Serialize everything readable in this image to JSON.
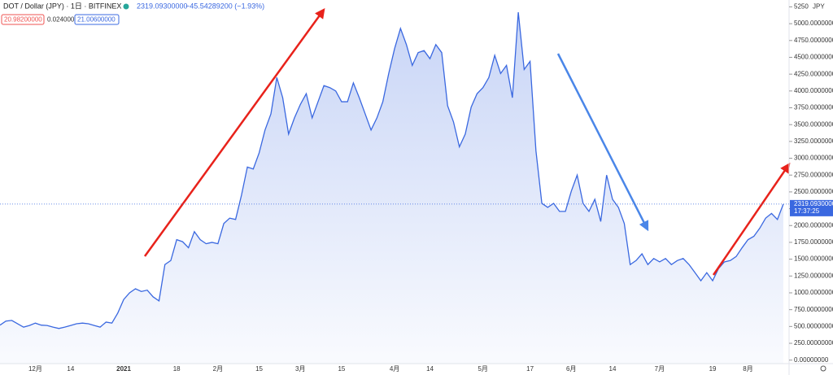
{
  "header": {
    "symbol": "DOT / Dollar (JPY) · 1日 · BITFINEX",
    "last": "2319.09300000",
    "change": "−45.54289200 (−1.93%)",
    "box_low": "20.98200000",
    "box_mid": "0.02400000",
    "box_high": "21.00600000"
  },
  "chart_data": {
    "type": "area",
    "currency": "JPY",
    "color": "#3a68e0",
    "categories": [
      null,
      null,
      null,
      null,
      null,
      null,
      "12月",
      null,
      null,
      null,
      null,
      null,
      "14",
      null,
      null,
      null,
      null,
      null,
      null,
      null,
      null,
      "2021",
      null,
      null,
      null,
      null,
      null,
      null,
      null,
      null,
      "18",
      null,
      null,
      null,
      null,
      null,
      null,
      "2月",
      null,
      null,
      null,
      null,
      null,
      null,
      "15",
      null,
      null,
      null,
      null,
      null,
      null,
      "3月",
      null,
      null,
      null,
      null,
      null,
      null,
      "15",
      null,
      null,
      null,
      null,
      null,
      null,
      null,
      null,
      "4月",
      null,
      null,
      null,
      null,
      null,
      "14",
      null,
      null,
      null,
      null,
      null,
      null,
      null,
      null,
      "5月",
      null,
      null,
      null,
      null,
      null,
      null,
      null,
      "17",
      null,
      null,
      null,
      null,
      null,
      null,
      "6月",
      null,
      null,
      null,
      null,
      null,
      null,
      "14",
      null,
      null,
      null,
      null,
      null,
      null,
      null,
      "7月",
      null,
      null,
      null,
      null,
      null,
      null,
      null,
      null,
      "19",
      null,
      null,
      null,
      null,
      null,
      "8月",
      null,
      null,
      null,
      null,
      null,
      null
    ],
    "series": [
      {
        "name": "DOT / Dollar (JPY)",
        "color": "#3a68e0",
        "values": [
          520,
          580,
          590,
          540,
          490,
          515,
          550,
          520,
          515,
          490,
          470,
          490,
          515,
          540,
          550,
          540,
          515,
          490,
          565,
          550,
          700,
          900,
          1000,
          1060,
          1020,
          1040,
          940,
          880,
          1420,
          1480,
          1790,
          1760,
          1670,
          1910,
          1790,
          1730,
          1750,
          1730,
          2030,
          2110,
          2090,
          2450,
          2870,
          2840,
          3080,
          3420,
          3660,
          4200,
          3900,
          3360,
          3600,
          3800,
          3960,
          3600,
          3840,
          4080,
          4050,
          4000,
          3840,
          3840,
          4120,
          3900,
          3660,
          3420,
          3600,
          3840,
          4260,
          4630,
          4930,
          4690,
          4380,
          4570,
          4600,
          4480,
          4690,
          4570,
          3780,
          3540,
          3170,
          3360,
          3760,
          3960,
          4050,
          4200,
          4530,
          4260,
          4380,
          3900,
          5170,
          4320,
          4440,
          3110,
          2330,
          2270,
          2330,
          2210,
          2210,
          2510,
          2750,
          2330,
          2210,
          2390,
          2060,
          2750,
          2390,
          2270,
          2030,
          1420,
          1480,
          1580,
          1420,
          1510,
          1460,
          1510,
          1420,
          1480,
          1510,
          1420,
          1300,
          1180,
          1300,
          1180,
          1360,
          1460,
          1480,
          1540,
          1670,
          1790,
          1840,
          1960,
          2110,
          2180,
          2090,
          2319.093
        ]
      }
    ],
    "last_label": "2319.09300000",
    "countdown": "17:37:25",
    "ylim": [
      -52,
      5352
    ],
    "yticks": [
      {
        "value": 0,
        "label": "0.00000000"
      },
      {
        "value": 250,
        "label": "250.00000000"
      },
      {
        "value": 500,
        "label": "500.00000000"
      },
      {
        "value": 750,
        "label": "750.00000000"
      },
      {
        "value": 1000,
        "label": "1000.00000000"
      },
      {
        "value": 1250,
        "label": "1250.00000000"
      },
      {
        "value": 1500,
        "label": "1500.00000000"
      },
      {
        "value": 1750,
        "label": "1750.00000000"
      },
      {
        "value": 2000,
        "label": "2000.00000000"
      },
      {
        "value": 2250,
        "label": "2250.00000000"
      },
      {
        "value": 2500,
        "label": "2500.00000000"
      },
      {
        "value": 2750,
        "label": "2750.00000000"
      },
      {
        "value": 3000,
        "label": "3000.00000000"
      },
      {
        "value": 3250,
        "label": "3250.00000000"
      },
      {
        "value": 3500,
        "label": "3500.00000000"
      },
      {
        "value": 3750,
        "label": "3750.00000000"
      },
      {
        "value": 4000,
        "label": "4000.00000000"
      },
      {
        "value": 4250,
        "label": "4250.00000000"
      },
      {
        "value": 4500,
        "label": "4500.00000000"
      },
      {
        "value": 4750,
        "label": "4750.00000000"
      },
      {
        "value": 5000,
        "label": "5000.00000000"
      },
      {
        "value": 5250,
        "label": "5250"
      }
    ]
  }
}
